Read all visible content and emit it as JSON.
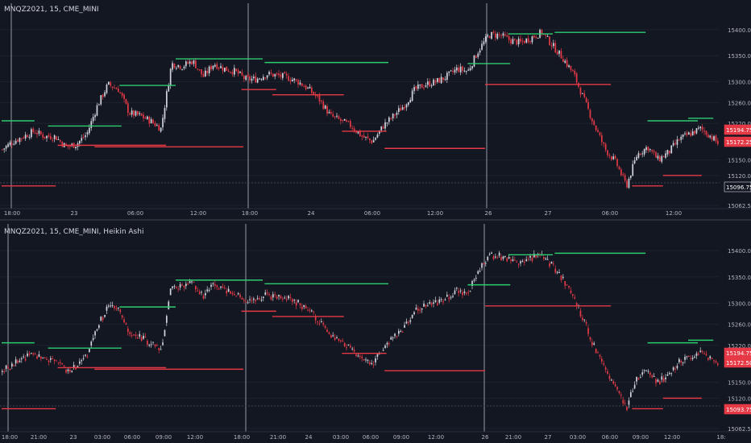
{
  "top_panel": {
    "title": "MNQZ2021, 15, CME_MINI",
    "price_labels": [
      {
        "value": 15194.75,
        "text": "15194.75",
        "color": "#e63946"
      },
      {
        "value": 15172.25,
        "text": "15172.25",
        "color": "#e63946"
      },
      {
        "value": 15096.75,
        "text": "15096.75",
        "color": "#131722"
      }
    ],
    "x_tick_labels": [
      "18:00",
      "23",
      "06:00",
      "12:00",
      "18:00",
      "24",
      "06:00",
      "12:00",
      "26",
      "27",
      "06:00",
      "12:00"
    ]
  },
  "bottom_panel": {
    "title": "MNQZ2021, 15, CME_MINI, Heikin Ashi",
    "price_labels": [
      {
        "value": 15194.75,
        "text": "15194.75",
        "color": "#e63946"
      },
      {
        "value": 15172.5,
        "text": "15172.50",
        "color": "#e63946"
      },
      {
        "value": 15093.75,
        "text": "15093.75",
        "color": "#e63946"
      }
    ],
    "x_tick_labels": [
      "18:00",
      "21:00",
      "23",
      "03:00",
      "06:00",
      "09:00",
      "12:00",
      "18:00",
      "21:00",
      "24",
      "03:00",
      "06:00",
      "09:00",
      "12:00",
      "26",
      "21:00",
      "27",
      "03:00",
      "06:00",
      "09:00",
      "12:00",
      "18:"
    ]
  },
  "colors": {
    "background": "#131722",
    "grid": "#1e222d",
    "up_candle": "#d1d4dc",
    "down_candle": "#e63946",
    "high_line": "#2ecc71",
    "low_line": "#e63946",
    "session_line": "#9598a1",
    "axis_text": "#b2b5be"
  },
  "chart_data": [
    {
      "type": "candlestick",
      "title": "MNQZ2021, 15, CME_MINI",
      "ylim": [
        15062.5,
        15420
      ],
      "y_ticks": [
        15400,
        15350,
        15300,
        15260,
        15220,
        15150,
        15120,
        15062.5
      ],
      "y_tick_labels": [
        "15400.00",
        "15350.00",
        "15300.00",
        "15260.00",
        "15220.00",
        "15150.00",
        "15120.00",
        "15062.50"
      ],
      "x_ticks": [
        "18:00",
        "23",
        "06:00",
        "12:00",
        "18:00",
        "24",
        "06:00",
        "12:00",
        "26",
        "27",
        "06:00",
        "12:00"
      ],
      "series_shape": [
        [
          0,
          15170
        ],
        [
          5,
          15185
        ],
        [
          10,
          15195
        ],
        [
          15,
          15205
        ],
        [
          20,
          15195
        ],
        [
          25,
          15195
        ],
        [
          30,
          15175
        ],
        [
          35,
          15180
        ],
        [
          40,
          15200
        ],
        [
          45,
          15255
        ],
        [
          50,
          15295
        ],
        [
          55,
          15285
        ],
        [
          60,
          15240
        ],
        [
          65,
          15235
        ],
        [
          70,
          15225
        ],
        [
          75,
          15210
        ],
        [
          80,
          15335
        ],
        [
          85,
          15330
        ],
        [
          90,
          15340
        ],
        [
          95,
          15310
        ],
        [
          100,
          15335
        ],
        [
          105,
          15325
        ],
        [
          110,
          15320
        ],
        [
          115,
          15305
        ],
        [
          120,
          15305
        ],
        [
          125,
          15315
        ],
        [
          130,
          15312
        ],
        [
          135,
          15308
        ],
        [
          140,
          15300
        ],
        [
          145,
          15285
        ],
        [
          150,
          15265
        ],
        [
          155,
          15235
        ],
        [
          160,
          15225
        ],
        [
          165,
          15215
        ],
        [
          170,
          15195
        ],
        [
          175,
          15185
        ],
        [
          180,
          15215
        ],
        [
          185,
          15235
        ],
        [
          190,
          15255
        ],
        [
          195,
          15285
        ],
        [
          200,
          15295
        ],
        [
          205,
          15300
        ],
        [
          210,
          15310
        ],
        [
          215,
          15325
        ],
        [
          220,
          15320
        ],
        [
          225,
          15360
        ],
        [
          230,
          15390
        ],
        [
          235,
          15390
        ],
        [
          240,
          15380
        ],
        [
          245,
          15375
        ],
        [
          250,
          15385
        ],
        [
          255,
          15395
        ],
        [
          260,
          15370
        ],
        [
          265,
          15345
        ],
        [
          270,
          15315
        ],
        [
          275,
          15265
        ],
        [
          280,
          15215
        ],
        [
          285,
          15170
        ],
        [
          290,
          15145
        ],
        [
          295,
          15100
        ],
        [
          300,
          15160
        ],
        [
          305,
          15175
        ],
        [
          310,
          15150
        ],
        [
          315,
          15165
        ],
        [
          320,
          15190
        ],
        [
          325,
          15200
        ],
        [
          330,
          15210
        ],
        [
          335,
          15195
        ],
        [
          340,
          15175
        ]
      ],
      "session_levels": [
        {
          "kind": "high",
          "value": 15225,
          "from": 0,
          "to": 17
        },
        {
          "kind": "low",
          "value": 15100,
          "from": 0,
          "to": 28
        },
        {
          "kind": "high",
          "value": 15215,
          "from": 24,
          "to": 62
        },
        {
          "kind": "low",
          "value": 15178,
          "from": 29,
          "to": 85
        },
        {
          "kind": "high",
          "value": 15293,
          "from": 61,
          "to": 90
        },
        {
          "kind": "low",
          "value": 15175,
          "from": 48,
          "to": 125
        },
        {
          "kind": "high",
          "value": 15344,
          "from": 90,
          "to": 135
        },
        {
          "kind": "low",
          "value": 15285,
          "from": 124,
          "to": 142
        },
        {
          "kind": "high",
          "value": 15337,
          "from": 136,
          "to": 200
        },
        {
          "kind": "low",
          "value": 15275,
          "from": 140,
          "to": 177
        },
        {
          "kind": "low",
          "value": 15205,
          "from": 176,
          "to": 199
        },
        {
          "kind": "low",
          "value": 15172,
          "from": 198,
          "to": 250
        },
        {
          "kind": "high",
          "value": 15335,
          "from": 241,
          "to": 263
        },
        {
          "kind": "low",
          "value": 15295,
          "from": 250,
          "to": 315
        },
        {
          "kind": "high",
          "value": 15392,
          "from": 262,
          "to": 285
        },
        {
          "kind": "high",
          "value": 15395,
          "from": 286,
          "to": 333
        },
        {
          "kind": "low",
          "value": 15100,
          "from": 326,
          "to": 342
        },
        {
          "kind": "high",
          "value": 15225,
          "from": 334,
          "to": 360
        },
        {
          "kind": "low",
          "value": 15120,
          "from": 342,
          "to": 362
        },
        {
          "kind": "high",
          "value": 15230,
          "from": 355,
          "to": 368
        }
      ]
    },
    {
      "type": "candlestick",
      "title": "MNQZ2021, 15, CME_MINI, Heikin Ashi",
      "ylim": [
        15062.5,
        15420
      ],
      "y_ticks": [
        15400,
        15350,
        15300,
        15260,
        15220,
        15150,
        15120,
        15062.5
      ],
      "y_tick_labels": [
        "15400.00",
        "15350.00",
        "15300.00",
        "15260.00",
        "15220.00",
        "15150.00",
        "15120.00",
        "15062.50"
      ],
      "x_ticks": [
        "18:00",
        "21:00",
        "23",
        "03:00",
        "06:00",
        "09:00",
        "12:00",
        "18:00",
        "21:00",
        "24",
        "03:00",
        "06:00",
        "09:00",
        "12:00",
        "26",
        "21:00",
        "27",
        "03:00",
        "06:00",
        "09:00",
        "12:00",
        "18:"
      ],
      "series_shape": [
        [
          0,
          15170
        ],
        [
          5,
          15185
        ],
        [
          10,
          15195
        ],
        [
          15,
          15205
        ],
        [
          20,
          15195
        ],
        [
          25,
          15195
        ],
        [
          30,
          15175
        ],
        [
          35,
          15180
        ],
        [
          40,
          15200
        ],
        [
          45,
          15255
        ],
        [
          50,
          15295
        ],
        [
          55,
          15285
        ],
        [
          60,
          15240
        ],
        [
          65,
          15235
        ],
        [
          70,
          15225
        ],
        [
          75,
          15210
        ],
        [
          80,
          15335
        ],
        [
          85,
          15330
        ],
        [
          90,
          15340
        ],
        [
          95,
          15310
        ],
        [
          100,
          15335
        ],
        [
          105,
          15325
        ],
        [
          110,
          15320
        ],
        [
          115,
          15305
        ],
        [
          120,
          15305
        ],
        [
          125,
          15315
        ],
        [
          130,
          15312
        ],
        [
          135,
          15308
        ],
        [
          140,
          15300
        ],
        [
          145,
          15285
        ],
        [
          150,
          15265
        ],
        [
          155,
          15235
        ],
        [
          160,
          15225
        ],
        [
          165,
          15215
        ],
        [
          170,
          15195
        ],
        [
          175,
          15185
        ],
        [
          180,
          15215
        ],
        [
          185,
          15235
        ],
        [
          190,
          15255
        ],
        [
          195,
          15285
        ],
        [
          200,
          15295
        ],
        [
          205,
          15300
        ],
        [
          210,
          15310
        ],
        [
          215,
          15325
        ],
        [
          220,
          15320
        ],
        [
          225,
          15360
        ],
        [
          230,
          15390
        ],
        [
          235,
          15390
        ],
        [
          240,
          15380
        ],
        [
          245,
          15375
        ],
        [
          250,
          15385
        ],
        [
          255,
          15395
        ],
        [
          260,
          15370
        ],
        [
          265,
          15345
        ],
        [
          270,
          15315
        ],
        [
          275,
          15265
        ],
        [
          280,
          15215
        ],
        [
          285,
          15170
        ],
        [
          290,
          15145
        ],
        [
          295,
          15100
        ],
        [
          300,
          15160
        ],
        [
          305,
          15175
        ],
        [
          310,
          15150
        ],
        [
          315,
          15165
        ],
        [
          320,
          15190
        ],
        [
          325,
          15200
        ],
        [
          330,
          15210
        ],
        [
          335,
          15195
        ],
        [
          340,
          15175
        ]
      ],
      "session_levels": [
        {
          "kind": "high",
          "value": 15225,
          "from": 0,
          "to": 17
        },
        {
          "kind": "low",
          "value": 15100,
          "from": 0,
          "to": 28
        },
        {
          "kind": "high",
          "value": 15215,
          "from": 24,
          "to": 62
        },
        {
          "kind": "low",
          "value": 15178,
          "from": 29,
          "to": 85
        },
        {
          "kind": "high",
          "value": 15293,
          "from": 61,
          "to": 90
        },
        {
          "kind": "low",
          "value": 15175,
          "from": 48,
          "to": 125
        },
        {
          "kind": "high",
          "value": 15344,
          "from": 90,
          "to": 135
        },
        {
          "kind": "low",
          "value": 15285,
          "from": 124,
          "to": 142
        },
        {
          "kind": "high",
          "value": 15337,
          "from": 136,
          "to": 200
        },
        {
          "kind": "low",
          "value": 15275,
          "from": 140,
          "to": 177
        },
        {
          "kind": "low",
          "value": 15205,
          "from": 176,
          "to": 199
        },
        {
          "kind": "low",
          "value": 15172,
          "from": 198,
          "to": 250
        },
        {
          "kind": "high",
          "value": 15335,
          "from": 241,
          "to": 263
        },
        {
          "kind": "low",
          "value": 15295,
          "from": 250,
          "to": 315
        },
        {
          "kind": "high",
          "value": 15392,
          "from": 262,
          "to": 285
        },
        {
          "kind": "high",
          "value": 15395,
          "from": 286,
          "to": 333
        },
        {
          "kind": "low",
          "value": 15100,
          "from": 326,
          "to": 342
        },
        {
          "kind": "high",
          "value": 15225,
          "from": 334,
          "to": 360
        },
        {
          "kind": "low",
          "value": 15120,
          "from": 342,
          "to": 362
        },
        {
          "kind": "high",
          "value": 15230,
          "from": 355,
          "to": 368
        }
      ]
    }
  ]
}
